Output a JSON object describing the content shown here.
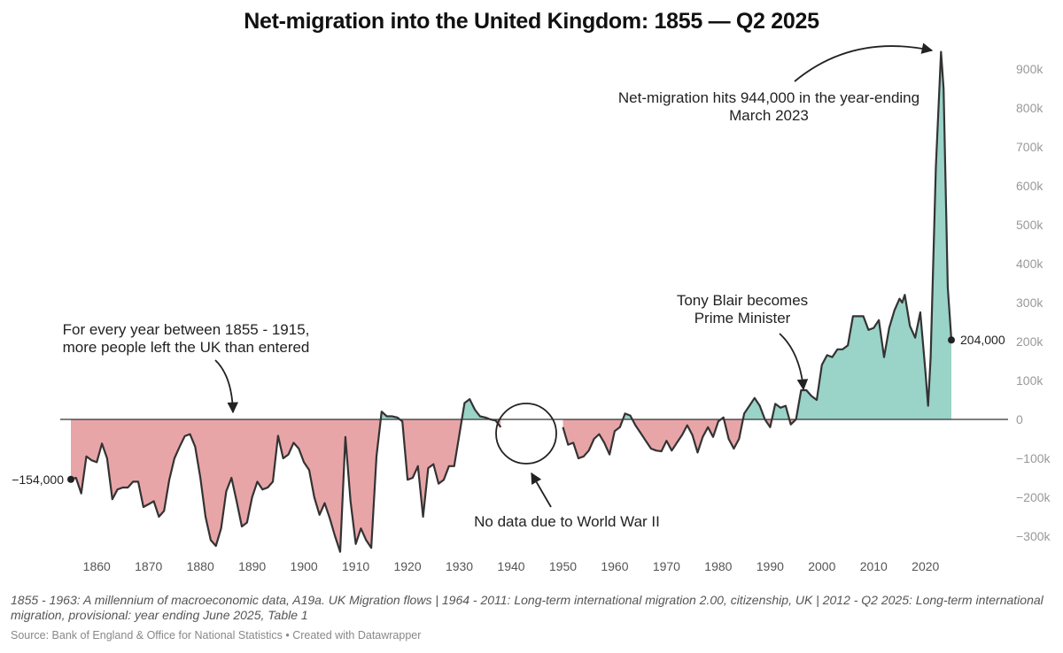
{
  "chart_data": {
    "type": "area",
    "title": "Net-migration into the United Kingdom: 1855 — Q2 2025",
    "xlabel": "",
    "ylabel": "",
    "xlim": [
      1853,
      2027
    ],
    "ylim": [
      -330000,
      950000
    ],
    "x_ticks": [
      1860,
      1870,
      1880,
      1890,
      1900,
      1910,
      1920,
      1930,
      1940,
      1950,
      1960,
      1970,
      1980,
      1990,
      2000,
      2010,
      2020
    ],
    "y_ticks": [
      {
        "value": 900000,
        "label": "900k"
      },
      {
        "value": 800000,
        "label": "800k"
      },
      {
        "value": 700000,
        "label": "700k"
      },
      {
        "value": 600000,
        "label": "600k"
      },
      {
        "value": 500000,
        "label": "500k"
      },
      {
        "value": 400000,
        "label": "400k"
      },
      {
        "value": 300000,
        "label": "300k"
      },
      {
        "value": 200000,
        "label": "200k"
      },
      {
        "value": 100000,
        "label": "100k"
      },
      {
        "value": 0,
        "label": "0"
      },
      {
        "value": -100000,
        "label": "−100k"
      },
      {
        "value": -200000,
        "label": "−200k"
      },
      {
        "value": -300000,
        "label": "−300k"
      }
    ],
    "grid": false,
    "positive_color": "#9ad3c8",
    "negative_color": "#e8a5a8",
    "line_color": "#333333",
    "series": [
      {
        "segments": [
          [
            [
              1855,
              -154000
            ],
            [
              1856,
              -150000
            ],
            [
              1857,
              -190000
            ],
            [
              1858,
              -95000
            ],
            [
              1859,
              -105000
            ],
            [
              1860,
              -110000
            ],
            [
              1861,
              -62000
            ],
            [
              1862,
              -100000
            ],
            [
              1863,
              -205000
            ],
            [
              1864,
              -180000
            ],
            [
              1865,
              -175000
            ],
            [
              1866,
              -175000
            ],
            [
              1867,
              -160000
            ],
            [
              1868,
              -160000
            ],
            [
              1869,
              -225000
            ],
            [
              1870,
              -218000
            ],
            [
              1871,
              -210000
            ],
            [
              1872,
              -250000
            ],
            [
              1873,
              -235000
            ],
            [
              1874,
              -155000
            ],
            [
              1875,
              -100000
            ],
            [
              1876,
              -70000
            ],
            [
              1877,
              -43000
            ],
            [
              1878,
              -38000
            ],
            [
              1879,
              -70000
            ],
            [
              1880,
              -150000
            ],
            [
              1881,
              -250000
            ],
            [
              1882,
              -310000
            ],
            [
              1883,
              -325000
            ],
            [
              1884,
              -280000
            ],
            [
              1885,
              -185000
            ],
            [
              1886,
              -150000
            ],
            [
              1887,
              -210000
            ],
            [
              1888,
              -275000
            ],
            [
              1889,
              -265000
            ],
            [
              1890,
              -200000
            ],
            [
              1891,
              -160000
            ],
            [
              1892,
              -180000
            ],
            [
              1893,
              -175000
            ],
            [
              1894,
              -160000
            ],
            [
              1895,
              -42000
            ],
            [
              1896,
              -100000
            ],
            [
              1897,
              -90000
            ],
            [
              1898,
              -60000
            ],
            [
              1899,
              -75000
            ],
            [
              1900,
              -110000
            ],
            [
              1901,
              -130000
            ],
            [
              1902,
              -200000
            ],
            [
              1903,
              -245000
            ],
            [
              1904,
              -215000
            ],
            [
              1905,
              -255000
            ],
            [
              1906,
              -300000
            ],
            [
              1907,
              -340000
            ],
            [
              1908,
              -45000
            ],
            [
              1909,
              -210000
            ],
            [
              1910,
              -320000
            ],
            [
              1911,
              -280000
            ],
            [
              1912,
              -310000
            ],
            [
              1913,
              -330000
            ],
            [
              1914,
              -95000
            ],
            [
              1915,
              20000
            ],
            [
              1916,
              8000
            ],
            [
              1917,
              8000
            ],
            [
              1918,
              5000
            ],
            [
              1919,
              -5000
            ],
            [
              1920,
              -155000
            ],
            [
              1921,
              -150000
            ],
            [
              1922,
              -120000
            ],
            [
              1923,
              -250000
            ],
            [
              1924,
              -125000
            ],
            [
              1925,
              -115000
            ],
            [
              1926,
              -165000
            ],
            [
              1927,
              -155000
            ],
            [
              1928,
              -120000
            ],
            [
              1929,
              -120000
            ],
            [
              1930,
              -40000
            ],
            [
              1931,
              42000
            ],
            [
              1932,
              52000
            ],
            [
              1933,
              25000
            ],
            [
              1934,
              8000
            ],
            [
              1935,
              5000
            ],
            [
              1936,
              0
            ],
            [
              1937,
              -3000
            ],
            [
              1938,
              -20000
            ]
          ],
          [
            [
              1950,
              -20000
            ],
            [
              1951,
              -65000
            ],
            [
              1952,
              -60000
            ],
            [
              1953,
              -100000
            ],
            [
              1954,
              -95000
            ],
            [
              1955,
              -80000
            ],
            [
              1956,
              -50000
            ],
            [
              1957,
              -38000
            ],
            [
              1958,
              -60000
            ],
            [
              1959,
              -90000
            ],
            [
              1960,
              -30000
            ],
            [
              1961,
              -20000
            ],
            [
              1962,
              15000
            ],
            [
              1963,
              10000
            ],
            [
              1964,
              -15000
            ],
            [
              1965,
              -35000
            ],
            [
              1966,
              -55000
            ],
            [
              1967,
              -75000
            ],
            [
              1968,
              -80000
            ],
            [
              1969,
              -82000
            ],
            [
              1970,
              -55000
            ],
            [
              1971,
              -80000
            ],
            [
              1972,
              -60000
            ],
            [
              1973,
              -40000
            ],
            [
              1974,
              -15000
            ],
            [
              1975,
              -40000
            ],
            [
              1976,
              -85000
            ],
            [
              1977,
              -45000
            ],
            [
              1978,
              -20000
            ],
            [
              1979,
              -45000
            ],
            [
              1980,
              -5000
            ],
            [
              1981,
              5000
            ],
            [
              1982,
              -50000
            ],
            [
              1983,
              -75000
            ],
            [
              1984,
              -50000
            ],
            [
              1985,
              15000
            ],
            [
              1986,
              35000
            ],
            [
              1987,
              55000
            ],
            [
              1988,
              35000
            ],
            [
              1989,
              0
            ],
            [
              1990,
              -20000
            ],
            [
              1991,
              40000
            ],
            [
              1992,
              30000
            ],
            [
              1993,
              35000
            ],
            [
              1994,
              -13000
            ],
            [
              1995,
              0
            ],
            [
              1996,
              75000
            ],
            [
              1997,
              75000
            ],
            [
              1998,
              60000
            ],
            [
              1999,
              50000
            ],
            [
              2000,
              140000
            ],
            [
              2001,
              165000
            ],
            [
              2002,
              160000
            ],
            [
              2003,
              180000
            ],
            [
              2004,
              180000
            ],
            [
              2005,
              190000
            ],
            [
              2006,
              265000
            ],
            [
              2007,
              265000
            ],
            [
              2008,
              265000
            ],
            [
              2009,
              230000
            ],
            [
              2010,
              235000
            ],
            [
              2011,
              255000
            ],
            [
              2012,
              160000
            ],
            [
              2013,
              235000
            ],
            [
              2014,
              280000
            ],
            [
              2015,
              310000
            ],
            [
              2015.5,
              300000
            ],
            [
              2016,
              320000
            ],
            [
              2017,
              240000
            ],
            [
              2018,
              210000
            ],
            [
              2019,
              275000
            ],
            [
              2020,
              120000
            ],
            [
              2020.5,
              35000
            ],
            [
              2021,
              160000
            ],
            [
              2022,
              650000
            ],
            [
              2023,
              944000
            ],
            [
              2023.5,
              850000
            ],
            [
              2024.3,
              340000
            ],
            [
              2025,
              204000
            ]
          ]
        ]
      }
    ],
    "annotations": [
      {
        "lines": [
          "For every year between 1855 - 1915,",
          "more people left the UK than entered"
        ]
      },
      {
        "lines": [
          "No data due to World War II"
        ]
      },
      {
        "lines": [
          "Tony Blair becomes",
          "Prime Minister"
        ]
      },
      {
        "lines": [
          "Net-migration hits 944,000 in the year-ending",
          "March 2023"
        ]
      }
    ],
    "start_label": "−154,000",
    "end_label": "204,000"
  },
  "notes": "1855 - 1963: A millennium of macroeconomic data, A19a. UK Migration flows | 1964 - 2011: Long-term international migration 2.00, citizenship, UK | 2012 - Q2 2025: Long-term international migration, provisional: year ending June 2025, Table 1",
  "source": "Source: Bank of England & Office for National Statistics • Created with Datawrapper"
}
